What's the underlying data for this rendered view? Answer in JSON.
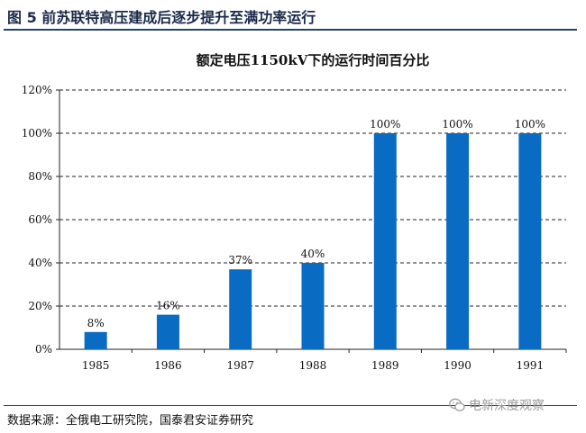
{
  "figure": {
    "title": "图 5  前苏联特高压建成后逐步提升至满功率运行",
    "source": "数据来源：全俄电工研究院，国泰君安证券研究",
    "watermark": "电新深度观察",
    "watermark_icon": "wechat-icon"
  },
  "chart_data": {
    "type": "bar",
    "title": "额定电压1150kV下的运行时间百分比",
    "xlabel": "",
    "ylabel": "",
    "categories": [
      "1985",
      "1986",
      "1987",
      "1988",
      "1989",
      "1990",
      "1991"
    ],
    "values": [
      8,
      16,
      37,
      40,
      100,
      100,
      100
    ],
    "data_labels": [
      "8%",
      "16%",
      "37%",
      "40%",
      "100%",
      "100%",
      "100%"
    ],
    "ylim": [
      0,
      120
    ],
    "yticks": [
      0,
      20,
      40,
      60,
      80,
      100,
      120
    ],
    "ytick_labels": [
      "0%",
      "20%",
      "40%",
      "60%",
      "80%",
      "100%",
      "120%"
    ],
    "grid": "horizontal-dashed",
    "bar_color": "#0a6bc2",
    "legend": "none"
  }
}
